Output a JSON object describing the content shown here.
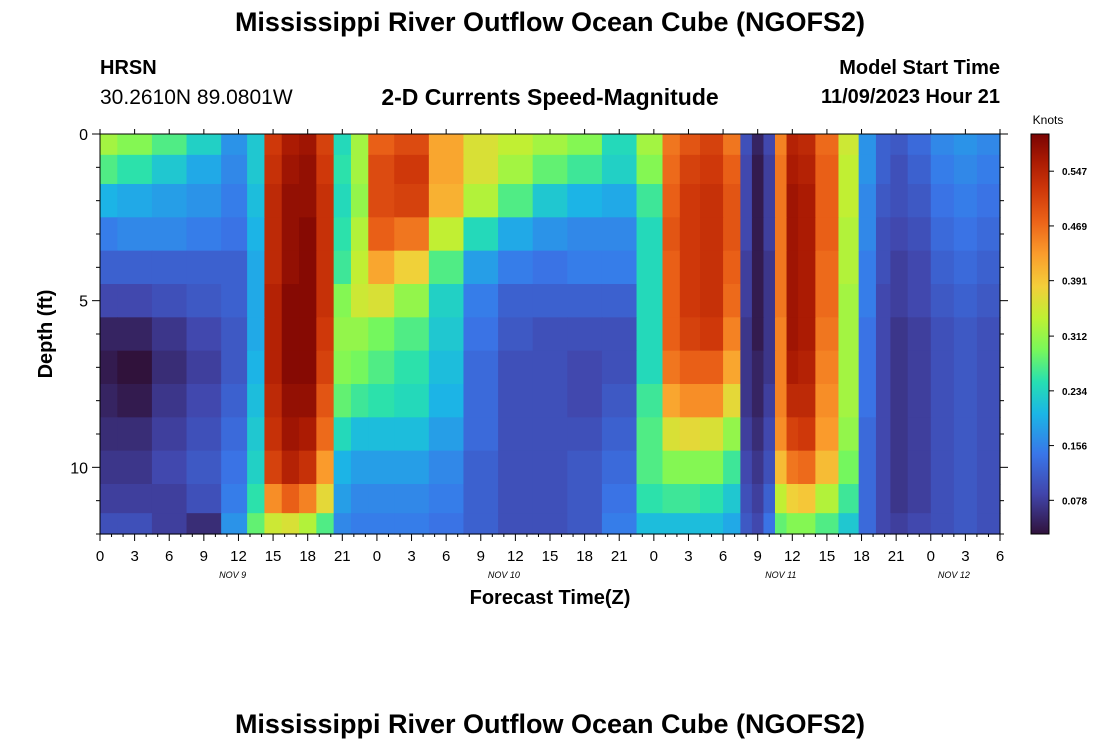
{
  "title": "Mississippi River Outflow Ocean Cube (NGOFS2)",
  "header": {
    "station": "HRSN",
    "coords": "30.2610N  89.0801W",
    "subtitle": "2-D Currents Speed-Magnitude",
    "start_label": "Model Start Time",
    "start_value": "11/09/2023 Hour 21"
  },
  "footer_title": "Mississippi River Outflow Ocean Cube (NGOFS2)",
  "chart_data": {
    "type": "heatmap",
    "xlabel": "Forecast Time(Z)",
    "ylabel": "Depth (ft)",
    "x_unit": "hours since 11/09/2023 00Z",
    "xlim": [
      0,
      78
    ],
    "ylim": [
      0,
      12
    ],
    "x_ticks": [
      0,
      3,
      6,
      9,
      12,
      15,
      18,
      21,
      24,
      27,
      30,
      33,
      36,
      39,
      42,
      45,
      48,
      51,
      54,
      57,
      60,
      63,
      66,
      69,
      72,
      75,
      78
    ],
    "x_tick_labels": [
      "0",
      "3",
      "6",
      "9",
      "12",
      "15",
      "18",
      "21",
      "0",
      "3",
      "6",
      "9",
      "12",
      "15",
      "18",
      "21",
      "0",
      "3",
      "6",
      "9",
      "12",
      "15",
      "18",
      "21",
      "0",
      "3",
      "6"
    ],
    "day_labels": [
      {
        "label": "NOV 9",
        "x": 11.5
      },
      {
        "label": "NOV 10",
        "x": 35
      },
      {
        "label": "NOV 11",
        "x": 59
      },
      {
        "label": "NOV 12",
        "x": 74
      }
    ],
    "y_ticks": [
      0,
      5,
      10
    ],
    "y_tick_labels": [
      "0",
      "5",
      "10"
    ],
    "colorbar": {
      "label": "Knots",
      "ticks": [
        0.078,
        0.156,
        0.234,
        0.312,
        0.391,
        0.469,
        0.547
      ],
      "range": [
        0.03,
        0.6
      ]
    },
    "depth_rows": [
      0.25,
      1.0,
      2.0,
      3.0,
      4.0,
      5.0,
      6.0,
      7.0,
      8.0,
      9.0,
      10.0,
      11.0,
      11.75
    ],
    "time_hours": [
      0,
      3,
      6,
      9,
      12,
      13.5,
      15,
      16.5,
      18,
      19.5,
      21,
      22.5,
      24,
      27,
      30,
      33,
      36,
      39,
      42,
      45,
      48,
      49.5,
      51,
      53,
      55,
      56,
      57,
      58,
      59,
      60,
      61,
      63,
      65,
      66.5,
      68,
      69,
      71,
      73,
      75,
      77
    ],
    "speed_knots": [
      [
        0.32,
        0.3,
        0.27,
        0.23,
        0.17,
        0.22,
        0.52,
        0.56,
        0.57,
        0.51,
        0.24,
        0.32,
        0.48,
        0.5,
        0.42,
        0.36,
        0.34,
        0.32,
        0.3,
        0.24,
        0.32,
        0.46,
        0.49,
        0.51,
        0.46,
        0.1,
        0.05,
        0.09,
        0.45,
        0.55,
        0.54,
        0.47,
        0.35,
        0.17,
        0.12,
        0.11,
        0.13,
        0.16,
        0.17,
        0.16
      ],
      [
        0.27,
        0.25,
        0.22,
        0.19,
        0.16,
        0.22,
        0.53,
        0.57,
        0.58,
        0.52,
        0.25,
        0.32,
        0.5,
        0.52,
        0.42,
        0.36,
        0.32,
        0.28,
        0.26,
        0.23,
        0.3,
        0.47,
        0.51,
        0.52,
        0.48,
        0.09,
        0.04,
        0.08,
        0.46,
        0.56,
        0.55,
        0.48,
        0.34,
        0.17,
        0.12,
        0.1,
        0.12,
        0.15,
        0.16,
        0.15
      ],
      [
        0.2,
        0.19,
        0.18,
        0.17,
        0.15,
        0.21,
        0.54,
        0.58,
        0.58,
        0.53,
        0.24,
        0.31,
        0.5,
        0.51,
        0.41,
        0.33,
        0.27,
        0.22,
        0.2,
        0.19,
        0.26,
        0.48,
        0.52,
        0.53,
        0.49,
        0.09,
        0.04,
        0.08,
        0.46,
        0.57,
        0.56,
        0.48,
        0.34,
        0.16,
        0.11,
        0.1,
        0.11,
        0.14,
        0.15,
        0.14
      ],
      [
        0.15,
        0.16,
        0.16,
        0.15,
        0.14,
        0.2,
        0.54,
        0.58,
        0.59,
        0.53,
        0.25,
        0.33,
        0.48,
        0.46,
        0.34,
        0.24,
        0.19,
        0.17,
        0.16,
        0.16,
        0.24,
        0.49,
        0.52,
        0.53,
        0.49,
        0.09,
        0.04,
        0.08,
        0.46,
        0.57,
        0.56,
        0.48,
        0.33,
        0.16,
        0.1,
        0.09,
        0.1,
        0.13,
        0.14,
        0.13
      ],
      [
        0.12,
        0.12,
        0.12,
        0.12,
        0.12,
        0.19,
        0.54,
        0.58,
        0.59,
        0.53,
        0.26,
        0.34,
        0.42,
        0.38,
        0.27,
        0.18,
        0.15,
        0.14,
        0.15,
        0.15,
        0.24,
        0.48,
        0.52,
        0.53,
        0.48,
        0.08,
        0.04,
        0.07,
        0.46,
        0.57,
        0.56,
        0.47,
        0.33,
        0.15,
        0.1,
        0.08,
        0.09,
        0.12,
        0.13,
        0.12
      ],
      [
        0.09,
        0.09,
        0.1,
        0.11,
        0.12,
        0.19,
        0.55,
        0.59,
        0.59,
        0.53,
        0.3,
        0.35,
        0.36,
        0.31,
        0.23,
        0.15,
        0.12,
        0.12,
        0.12,
        0.12,
        0.24,
        0.48,
        0.52,
        0.53,
        0.47,
        0.08,
        0.04,
        0.07,
        0.46,
        0.57,
        0.56,
        0.47,
        0.32,
        0.15,
        0.09,
        0.08,
        0.09,
        0.11,
        0.12,
        0.11
      ],
      [
        0.05,
        0.05,
        0.07,
        0.09,
        0.11,
        0.19,
        0.55,
        0.59,
        0.59,
        0.52,
        0.31,
        0.31,
        0.29,
        0.27,
        0.22,
        0.14,
        0.11,
        0.1,
        0.1,
        0.1,
        0.24,
        0.48,
        0.51,
        0.52,
        0.45,
        0.07,
        0.04,
        0.07,
        0.45,
        0.57,
        0.56,
        0.46,
        0.32,
        0.14,
        0.09,
        0.07,
        0.08,
        0.1,
        0.11,
        0.1
      ],
      [
        0.04,
        0.03,
        0.06,
        0.08,
        0.11,
        0.2,
        0.55,
        0.59,
        0.59,
        0.51,
        0.3,
        0.29,
        0.27,
        0.25,
        0.21,
        0.13,
        0.1,
        0.1,
        0.09,
        0.1,
        0.24,
        0.46,
        0.48,
        0.48,
        0.42,
        0.07,
        0.05,
        0.07,
        0.45,
        0.56,
        0.55,
        0.45,
        0.32,
        0.14,
        0.09,
        0.07,
        0.08,
        0.1,
        0.11,
        0.1
      ],
      [
        0.05,
        0.04,
        0.07,
        0.09,
        0.12,
        0.21,
        0.54,
        0.58,
        0.58,
        0.49,
        0.28,
        0.26,
        0.25,
        0.24,
        0.2,
        0.13,
        0.1,
        0.1,
        0.09,
        0.11,
        0.26,
        0.42,
        0.44,
        0.44,
        0.37,
        0.07,
        0.05,
        0.08,
        0.45,
        0.54,
        0.54,
        0.44,
        0.32,
        0.14,
        0.09,
        0.07,
        0.08,
        0.1,
        0.11,
        0.1
      ],
      [
        0.06,
        0.06,
        0.08,
        0.1,
        0.13,
        0.22,
        0.53,
        0.57,
        0.56,
        0.47,
        0.24,
        0.21,
        0.21,
        0.21,
        0.18,
        0.13,
        0.1,
        0.1,
        0.1,
        0.12,
        0.27,
        0.36,
        0.37,
        0.36,
        0.31,
        0.08,
        0.06,
        0.09,
        0.44,
        0.51,
        0.52,
        0.43,
        0.31,
        0.13,
        0.09,
        0.07,
        0.08,
        0.1,
        0.11,
        0.1
      ],
      [
        0.07,
        0.07,
        0.09,
        0.11,
        0.14,
        0.23,
        0.51,
        0.55,
        0.53,
        0.43,
        0.2,
        0.18,
        0.18,
        0.18,
        0.16,
        0.12,
        0.1,
        0.1,
        0.11,
        0.13,
        0.27,
        0.3,
        0.3,
        0.3,
        0.26,
        0.09,
        0.07,
        0.1,
        0.4,
        0.46,
        0.47,
        0.4,
        0.29,
        0.13,
        0.09,
        0.07,
        0.08,
        0.1,
        0.11,
        0.1
      ],
      [
        0.08,
        0.08,
        0.08,
        0.1,
        0.15,
        0.25,
        0.44,
        0.48,
        0.45,
        0.37,
        0.18,
        0.16,
        0.16,
        0.16,
        0.15,
        0.12,
        0.1,
        0.1,
        0.11,
        0.14,
        0.25,
        0.26,
        0.26,
        0.25,
        0.22,
        0.1,
        0.08,
        0.12,
        0.34,
        0.38,
        0.39,
        0.33,
        0.26,
        0.13,
        0.09,
        0.07,
        0.08,
        0.1,
        0.11,
        0.1
      ],
      [
        0.1,
        0.1,
        0.08,
        0.06,
        0.17,
        0.28,
        0.35,
        0.36,
        0.33,
        0.27,
        0.16,
        0.15,
        0.15,
        0.15,
        0.14,
        0.12,
        0.1,
        0.1,
        0.11,
        0.15,
        0.21,
        0.21,
        0.21,
        0.21,
        0.19,
        0.11,
        0.09,
        0.14,
        0.28,
        0.3,
        0.3,
        0.27,
        0.22,
        0.13,
        0.09,
        0.08,
        0.09,
        0.1,
        0.11,
        0.1
      ]
    ]
  }
}
